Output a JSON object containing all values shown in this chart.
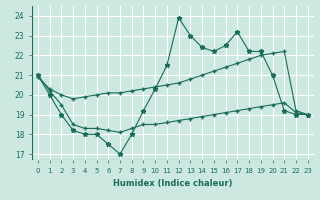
{
  "xlabel": "Humidex (Indice chaleur)",
  "xlim": [
    -0.5,
    23.5
  ],
  "ylim": [
    16.7,
    24.5
  ],
  "yticks": [
    17,
    18,
    19,
    20,
    21,
    22,
    23,
    24
  ],
  "xticks": [
    0,
    1,
    2,
    3,
    4,
    5,
    6,
    7,
    8,
    9,
    10,
    11,
    12,
    13,
    14,
    15,
    16,
    17,
    18,
    19,
    20,
    21,
    22,
    23
  ],
  "bg_color": "#cce8e0",
  "grid_color": "#ffffff",
  "line_color": "#1a6b5a",
  "series1_x": [
    0,
    1,
    2,
    3,
    4,
    5,
    6,
    7,
    8,
    9,
    10,
    11,
    12,
    13,
    14,
    15,
    16,
    17,
    18,
    19,
    20,
    21,
    22,
    23
  ],
  "series1_y": [
    21.0,
    20.0,
    19.0,
    18.2,
    18.0,
    18.0,
    17.5,
    17.0,
    18.0,
    19.2,
    20.3,
    21.5,
    23.9,
    23.0,
    22.4,
    22.2,
    22.5,
    23.2,
    22.2,
    22.2,
    21.0,
    19.2,
    19.0,
    19.0
  ],
  "series2_x": [
    0,
    1,
    2,
    3,
    4,
    5,
    6,
    7,
    8,
    9,
    10,
    11,
    12,
    13,
    14,
    15,
    16,
    17,
    18,
    19,
    20,
    21,
    22,
    23
  ],
  "series2_y": [
    20.9,
    20.3,
    20.0,
    19.8,
    19.9,
    20.0,
    20.1,
    20.1,
    20.2,
    20.3,
    20.4,
    20.5,
    20.6,
    20.8,
    21.0,
    21.2,
    21.4,
    21.6,
    21.8,
    22.0,
    22.1,
    22.2,
    19.2,
    19.0
  ],
  "series3_x": [
    0,
    1,
    2,
    3,
    4,
    5,
    6,
    7,
    8,
    9,
    10,
    11,
    12,
    13,
    14,
    15,
    16,
    17,
    18,
    19,
    20,
    21,
    22,
    23
  ],
  "series3_y": [
    21.0,
    20.2,
    19.5,
    18.5,
    18.3,
    18.3,
    18.2,
    18.1,
    18.3,
    18.5,
    18.5,
    18.6,
    18.7,
    18.8,
    18.9,
    19.0,
    19.1,
    19.2,
    19.3,
    19.4,
    19.5,
    19.6,
    19.1,
    19.0
  ]
}
